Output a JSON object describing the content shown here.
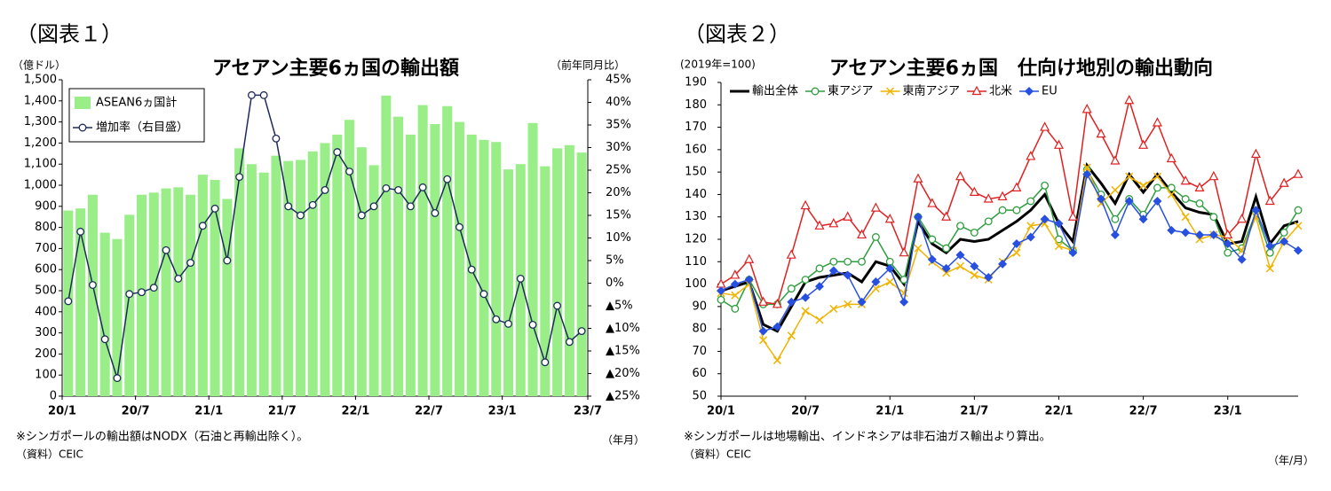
{
  "chart_data": [
    {
      "type": "bar_line",
      "figure_label": "（図表１）",
      "title": "アセアン主要6ヵ国の輸出額",
      "y_label": "（億ドル）",
      "y2_label": "（前年同月比）",
      "note": "※シンガポールの輸出額はNODX（石油と再輸出除く）。",
      "source": "（資料）CEIC",
      "x_unit": "（年月）",
      "legend": "upper left",
      "categories": [
        "20/1",
        null,
        null,
        null,
        null,
        null,
        "20/7",
        null,
        null,
        null,
        null,
        null,
        "21/1",
        null,
        null,
        null,
        null,
        null,
        "21/7",
        null,
        null,
        null,
        null,
        null,
        "22/1",
        null,
        null,
        null,
        null,
        null,
        "22/7",
        null,
        null,
        null,
        null,
        null,
        "23/1",
        null,
        null,
        null,
        null,
        null,
        "23/7"
      ],
      "series": [
        {
          "name": "ASEAN6ヵ国計",
          "type": "bar",
          "color": "#99ee88",
          "values": [
            880,
            890,
            955,
            775,
            745,
            860,
            955,
            965,
            985,
            990,
            955,
            1050,
            1025,
            935,
            1175,
            1100,
            1060,
            1140,
            1115,
            1120,
            1160,
            1200,
            1240,
            1310,
            1180,
            1095,
            1425,
            1325,
            1240,
            1380,
            1290,
            1375,
            1300,
            1240,
            1215,
            1205,
            1075,
            1100,
            1295,
            1090,
            1175,
            1190,
            1155
          ]
        },
        {
          "name": "増加率（右目盛）",
          "type": "line",
          "axis": "y2",
          "color": "#1f2a5a",
          "marker": "circle",
          "values": [
            -4,
            11.4,
            -0.4,
            -12.4,
            -21,
            -2.4,
            -2,
            -1,
            7.3,
            1,
            4.5,
            12.7,
            16.5,
            5,
            23.5,
            41.6,
            41.6,
            32,
            17,
            15,
            17.3,
            20.6,
            29,
            24.7,
            15,
            17,
            21,
            20.6,
            17,
            21.2,
            15.5,
            23,
            12.4,
            3,
            -2.4,
            -8,
            -9,
            1,
            -9.2,
            -17.5,
            -5,
            -13,
            -10.6
          ]
        }
      ],
      "ylim": [
        0,
        1500
      ],
      "yticks": [
        0,
        100,
        200,
        300,
        400,
        500,
        600,
        700,
        800,
        900,
        {
          "value": 1000,
          "label": "1,000"
        },
        {
          "value": 1100,
          "label": "1,100"
        },
        {
          "value": 1200,
          "label": "1,200"
        },
        {
          "value": 1300,
          "label": "1,300"
        },
        {
          "value": 1400,
          "label": "1,400"
        },
        {
          "value": 1500,
          "label": "1,500"
        }
      ],
      "y2lim": [
        -25,
        45
      ],
      "y2ticks": [
        {
          "value": 45,
          "label": "45%"
        },
        {
          "value": 40,
          "label": "40%"
        },
        {
          "value": 35,
          "label": "35%"
        },
        {
          "value": 30,
          "label": "30%"
        },
        {
          "value": 25,
          "label": "25%"
        },
        {
          "value": 20,
          "label": "20%"
        },
        {
          "value": 15,
          "label": "15%"
        },
        {
          "value": 10,
          "label": "10%"
        },
        {
          "value": 5,
          "label": "5%"
        },
        {
          "value": 0,
          "label": "0%"
        },
        {
          "value": -5,
          "label": "▲5%"
        },
        {
          "value": -10,
          "label": "▲10%"
        },
        {
          "value": -15,
          "label": "▲15%"
        },
        {
          "value": -20,
          "label": "▲20%"
        },
        {
          "value": -25,
          "label": "▲25%"
        }
      ],
      "grid": false
    },
    {
      "type": "line",
      "figure_label": "（図表２）",
      "title": "アセアン主要6ヵ国　仕向け地別の輸出動向",
      "y_label": "(2019年=100)",
      "note": "※シンガポールは地場輸出、インドネシアは非石油ガス輸出より算出。",
      "source": "（資料）CEIC",
      "x_unit": "（年/月）",
      "legend": "top",
      "categories": [
        "20/1",
        null,
        null,
        null,
        null,
        null,
        "20/7",
        null,
        null,
        null,
        null,
        null,
        "21/1",
        null,
        null,
        null,
        null,
        null,
        "21/7",
        null,
        null,
        null,
        null,
        null,
        "22/1",
        null,
        null,
        null,
        null,
        null,
        "22/7",
        null,
        null,
        null,
        null,
        null,
        "23/1",
        null,
        null,
        null,
        null,
        null
      ],
      "series": [
        {
          "name": "輸出全体",
          "color": "#000000",
          "marker": "none",
          "values": [
            97,
            99,
            101,
            82,
            79,
            90,
            101,
            103,
            104,
            105,
            101,
            110,
            108,
            100,
            128,
            118,
            114,
            120,
            119,
            120,
            124,
            128,
            133,
            140,
            127,
            119,
            153,
            145,
            136,
            149,
            141,
            149,
            141,
            134,
            132,
            131,
            118,
            119,
            139,
            118,
            126,
            128
          ]
        },
        {
          "name": "東アジア",
          "color": "#2e9e3e",
          "marker": "circle",
          "values": [
            93,
            89,
            102,
            91,
            91,
            98,
            102,
            107,
            110,
            110,
            110,
            121,
            110,
            102,
            130,
            120,
            116,
            126,
            123,
            128,
            133,
            133,
            137,
            144,
            120,
            115,
            151,
            140,
            129,
            138,
            131,
            143,
            143,
            138,
            136,
            130,
            114,
            116,
            132,
            114,
            123,
            133
          ]
        },
        {
          "name": "東南アジア",
          "color": "#f0b400",
          "marker": "x",
          "values": [
            96,
            95,
            100,
            75,
            66,
            77,
            88,
            84,
            89,
            91,
            91,
            98,
            101,
            96,
            116,
            110,
            105,
            108,
            104,
            102,
            110,
            114,
            126,
            127,
            117,
            115,
            152,
            136,
            142,
            148,
            144,
            148,
            140,
            130,
            120,
            122,
            121,
            115,
            130,
            107,
            119,
            126
          ]
        },
        {
          "name": "北米",
          "color": "#e02020",
          "marker": "triangle",
          "values": [
            100,
            104,
            111,
            92,
            91,
            113,
            135,
            126,
            127,
            130,
            122,
            134,
            129,
            114,
            147,
            136,
            130,
            148,
            141,
            138,
            139,
            143,
            157,
            170,
            162,
            130,
            178,
            167,
            155,
            182,
            162,
            172,
            156,
            146,
            143,
            148,
            122,
            129,
            158,
            137,
            145,
            149
          ]
        },
        {
          "name": "EU",
          "color": "#2850e0",
          "marker": "diamond",
          "values": [
            97,
            100,
            102,
            79,
            81,
            92,
            94,
            99,
            106,
            104,
            92,
            101,
            107,
            92,
            130,
            111,
            107,
            113,
            108,
            103,
            109,
            118,
            121,
            129,
            127,
            114,
            149,
            138,
            122,
            137,
            129,
            137,
            124,
            123,
            122,
            122,
            118,
            111,
            133,
            117,
            119,
            115
          ]
        }
      ],
      "ylim": [
        50,
        190
      ],
      "yticks": [
        50,
        60,
        70,
        80,
        90,
        100,
        110,
        120,
        130,
        140,
        150,
        160,
        170,
        180,
        190
      ],
      "grid": false
    }
  ]
}
